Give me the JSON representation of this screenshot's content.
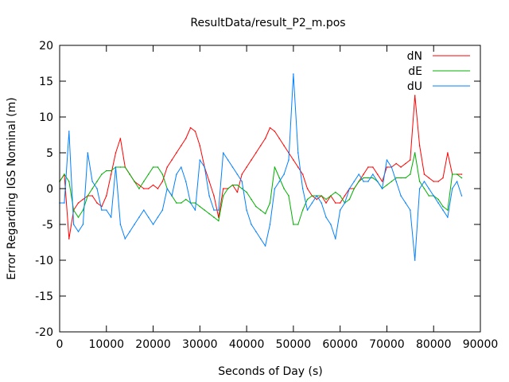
{
  "chart_data": {
    "type": "line",
    "title": "ResultData/result_P2_m.pos",
    "xlabel": "Seconds of Day (s)",
    "ylabel": "Error Regarding IGS Nominal (m)",
    "xlim": [
      0,
      90000
    ],
    "ylim": [
      -20,
      20
    ],
    "x_ticks": [
      0,
      10000,
      20000,
      30000,
      40000,
      50000,
      60000,
      70000,
      80000,
      90000
    ],
    "y_ticks": [
      -20,
      -15,
      -10,
      -5,
      0,
      5,
      10,
      15,
      20
    ],
    "grid": false,
    "legend_position": "top-right",
    "x": [
      0,
      1000,
      2000,
      3000,
      4000,
      5000,
      6000,
      7000,
      8000,
      9000,
      10000,
      11000,
      12000,
      13000,
      14000,
      15000,
      16000,
      17000,
      18000,
      19000,
      20000,
      21000,
      22000,
      23000,
      24000,
      25000,
      26000,
      27000,
      28000,
      29000,
      30000,
      31000,
      32000,
      33000,
      34000,
      35000,
      36000,
      37000,
      38000,
      39000,
      40000,
      41000,
      42000,
      43000,
      44000,
      45000,
      46000,
      47000,
      48000,
      49000,
      50000,
      51000,
      52000,
      53000,
      54000,
      55000,
      56000,
      57000,
      58000,
      59000,
      60000,
      61000,
      62000,
      63000,
      64000,
      65000,
      66000,
      67000,
      68000,
      69000,
      70000,
      71000,
      72000,
      73000,
      74000,
      75000,
      76000,
      77000,
      78000,
      79000,
      80000,
      81000,
      82000,
      83000,
      84000,
      85000,
      86000
    ],
    "series": [
      {
        "name": "dN",
        "color": "#ff0000",
        "values": [
          1,
          2,
          -7,
          -3,
          -2,
          -1.5,
          -1,
          -1,
          -2,
          -2.5,
          -1,
          2,
          5,
          7,
          3,
          2,
          1,
          0.5,
          0,
          0,
          0.5,
          0,
          1,
          3,
          4,
          5,
          6,
          7,
          8.5,
          8,
          6,
          3,
          1,
          -1,
          -4,
          0,
          0,
          0.5,
          -0.5,
          2,
          3,
          4,
          5,
          6,
          7,
          8.5,
          8,
          7,
          6,
          5,
          4,
          3,
          2,
          0,
          -1,
          -1.5,
          -1,
          -2,
          -1,
          -2,
          -2,
          -1,
          0,
          0,
          1,
          2,
          3,
          3,
          2,
          1,
          3,
          3,
          3.5,
          3,
          3.5,
          4,
          13,
          6,
          2,
          1.5,
          1,
          1,
          1.5,
          5,
          2,
          2,
          2
        ]
      },
      {
        "name": "dE",
        "color": "#00b000",
        "values": [
          1,
          2,
          1,
          -3,
          -4,
          -3,
          -1,
          0,
          1,
          2,
          2.5,
          2.5,
          3,
          3,
          3,
          2,
          1,
          0,
          1,
          2,
          3,
          3,
          2,
          0,
          -1,
          -2,
          -2,
          -1.5,
          -2,
          -2,
          -2.5,
          -3,
          -3.5,
          -4,
          -4.5,
          -1,
          0,
          0.5,
          0.5,
          0,
          -0.5,
          -1.5,
          -2.5,
          -3,
          -3.5,
          -2,
          3,
          1.5,
          0,
          -1,
          -5,
          -5,
          -3,
          -1.5,
          -1,
          -1,
          -1,
          -1.5,
          -1,
          -0.5,
          -1,
          -2,
          -1.5,
          0,
          1,
          1.5,
          1.5,
          1.5,
          1,
          0,
          0.5,
          1,
          1.5,
          1.5,
          1.5,
          2,
          5,
          1,
          0,
          -1,
          -1,
          -1.5,
          -2.5,
          -3,
          2,
          2,
          1.5
        ]
      },
      {
        "name": "dU",
        "color": "#0080ff",
        "values": [
          -2,
          -2,
          8,
          -5,
          -6,
          -5,
          5,
          1,
          0,
          -3,
          -3,
          -4,
          3,
          -5,
          -7,
          -6,
          -5,
          -4,
          -3,
          -4,
          -5,
          -4,
          -3,
          0,
          -1,
          2,
          3,
          1,
          -2,
          -3,
          4,
          3,
          -1,
          -3,
          -3,
          5,
          4,
          3,
          2,
          1,
          -3,
          -5,
          -6,
          -7,
          -8,
          -5,
          0,
          1,
          2,
          4,
          16,
          5,
          0,
          -3,
          -2,
          -1,
          -2,
          -4,
          -5,
          -7,
          -3,
          -2,
          0,
          1,
          2,
          1,
          1,
          2,
          1,
          0,
          4,
          3,
          1,
          -1,
          -2,
          -3,
          -10,
          0,
          1,
          0,
          -1,
          -2,
          -3,
          -4,
          0,
          1,
          -1
        ]
      }
    ]
  }
}
